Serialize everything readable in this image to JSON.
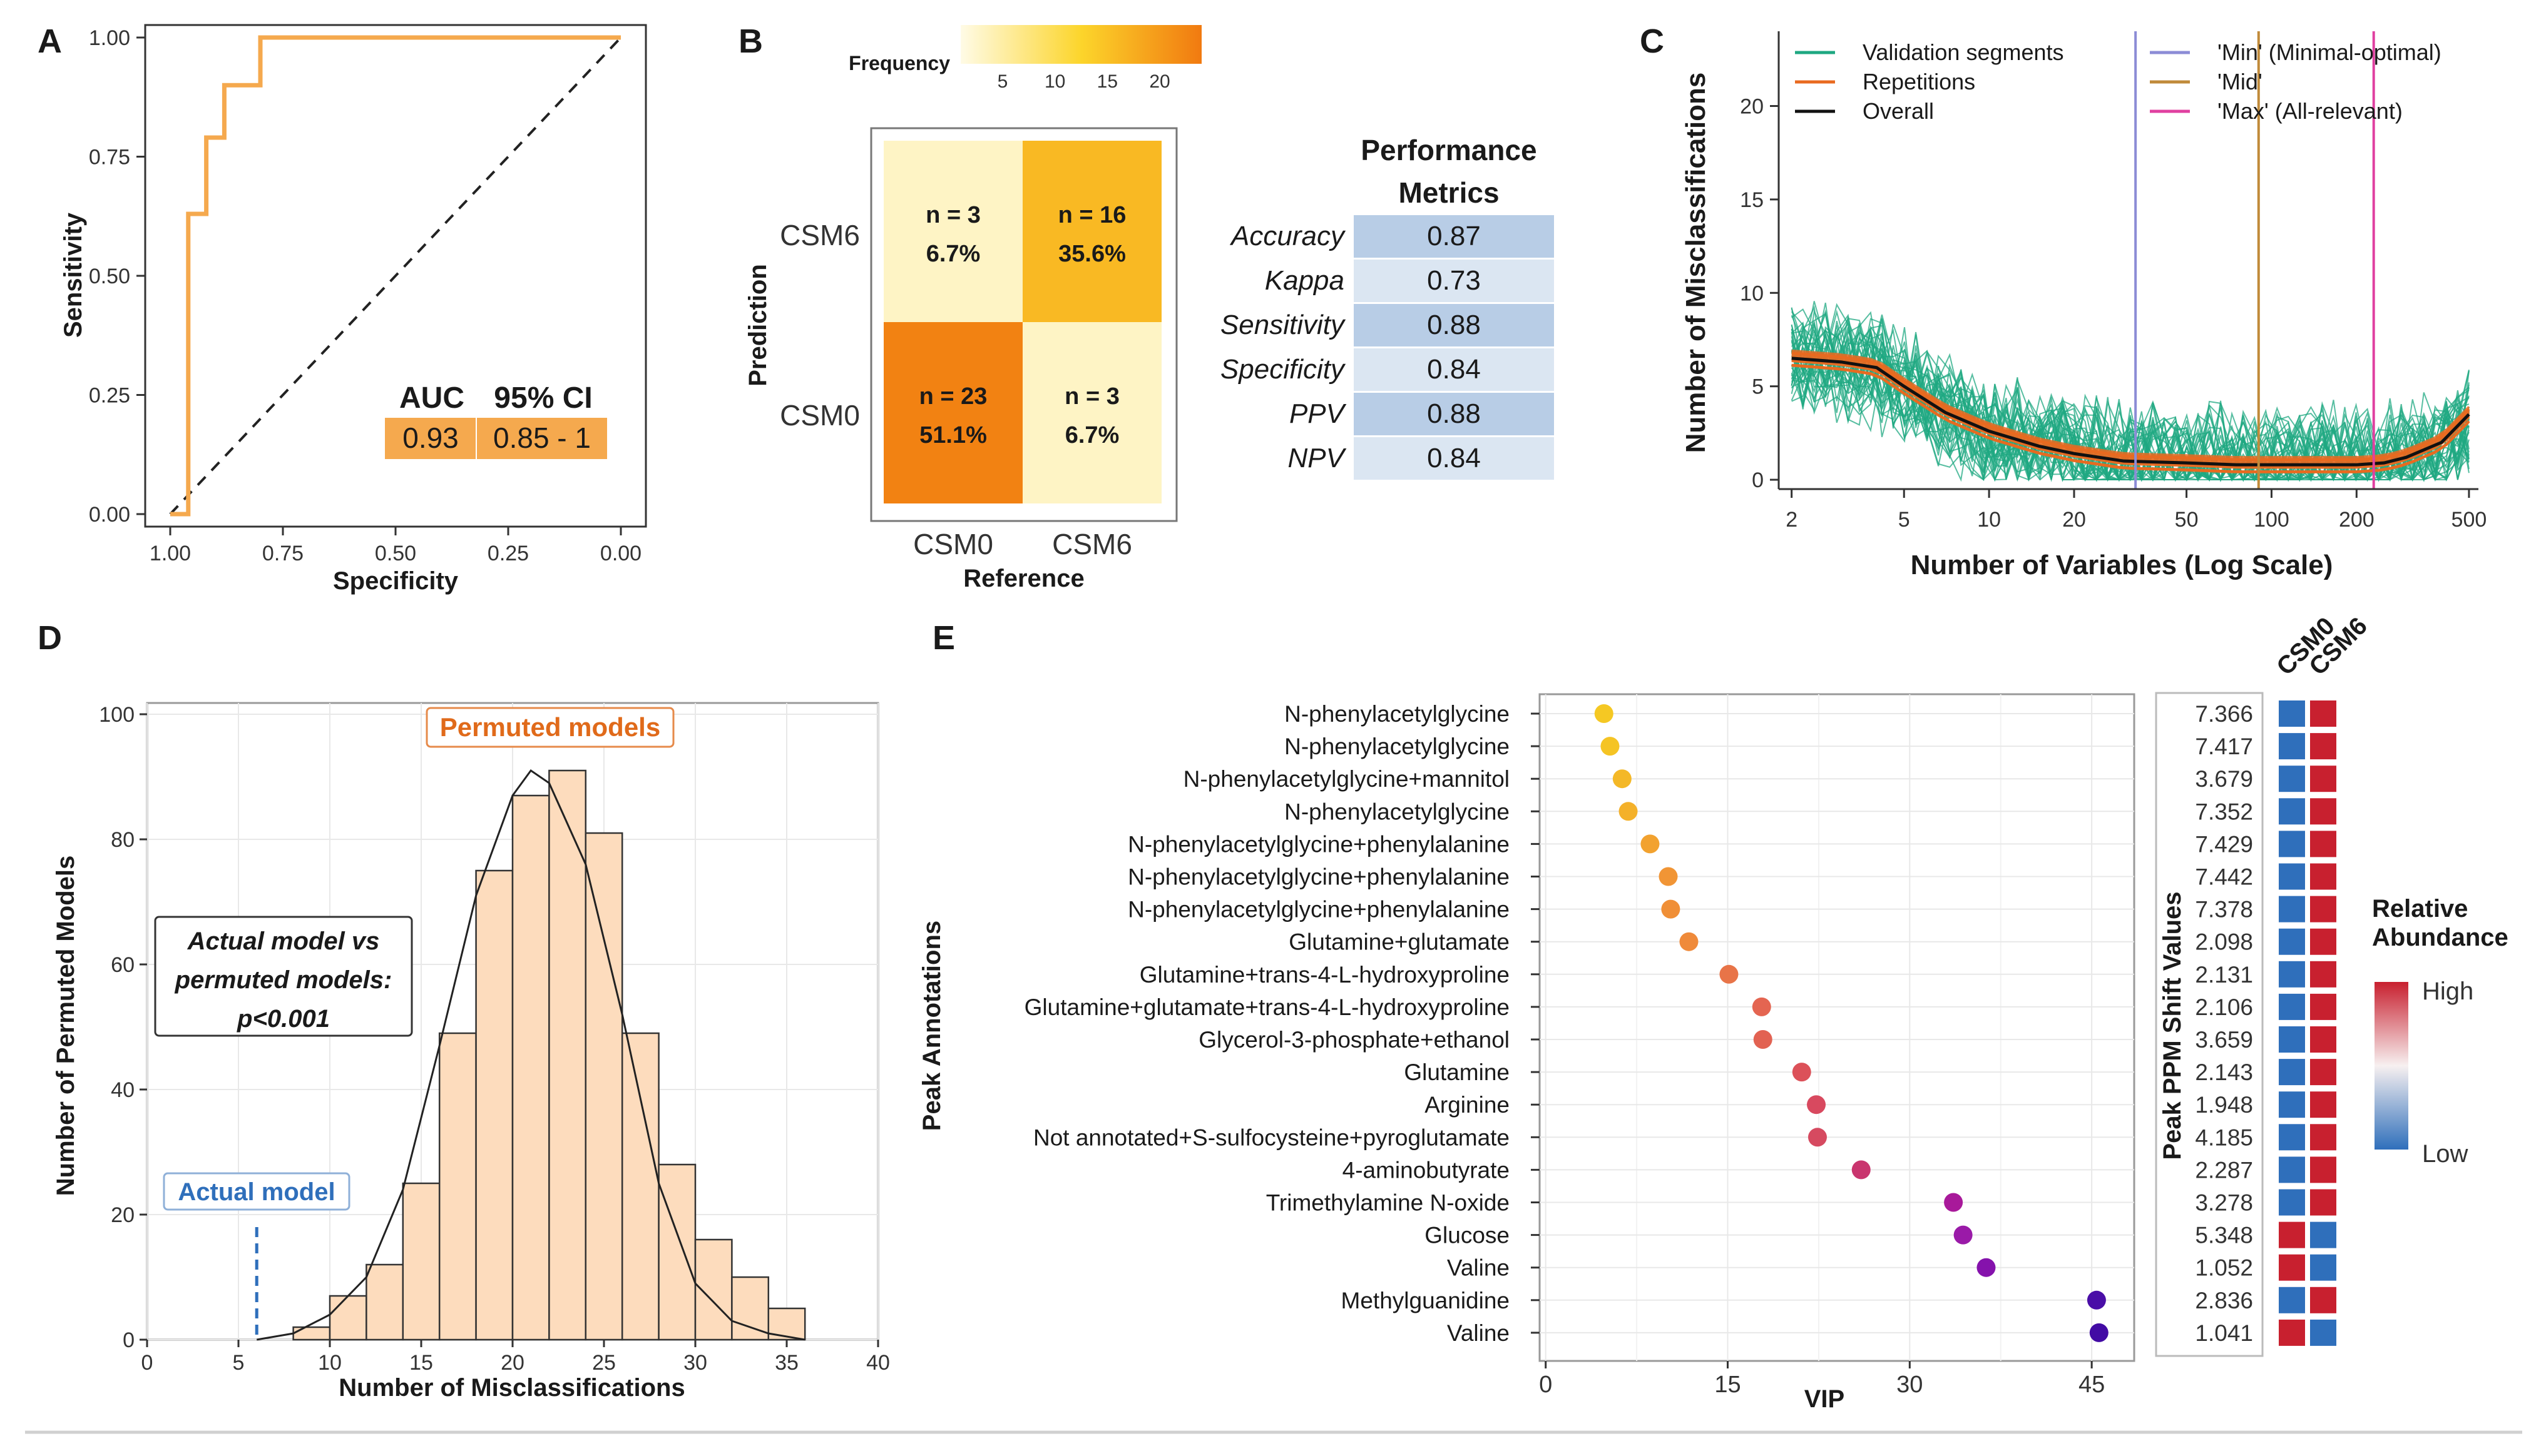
{
  "figure": {
    "panel_labels": [
      "A",
      "B",
      "C",
      "D",
      "E"
    ]
  },
  "chart_data": [
    {
      "panel": "A",
      "type": "line",
      "title": "",
      "xlabel": "Specificity",
      "ylabel": "Sensitivity",
      "xlim": [
        1.0,
        0.0
      ],
      "ylim": [
        0.0,
        1.0
      ],
      "x_ticks": [
        "1.00",
        "0.75",
        "0.50",
        "0.25",
        "0.00"
      ],
      "y_ticks": [
        "0.00",
        "0.25",
        "0.50",
        "0.75",
        "1.00"
      ],
      "roc_points": [
        [
          1.0,
          0.0
        ],
        [
          0.96,
          0.0
        ],
        [
          0.96,
          0.63
        ],
        [
          0.92,
          0.63
        ],
        [
          0.92,
          0.79
        ],
        [
          0.88,
          0.79
        ],
        [
          0.88,
          0.9
        ],
        [
          0.8,
          0.9
        ],
        [
          0.8,
          1.0
        ],
        [
          0.0,
          1.0
        ]
      ],
      "color": "#f5a94e",
      "table": {
        "headers": [
          "AUC",
          "95% CI"
        ],
        "values": [
          "0.93",
          "0.85 - 1"
        ],
        "fill": "#f5a94e"
      }
    },
    {
      "panel": "B",
      "type": "heatmap",
      "xlabel": "Reference",
      "ylabel": "Prediction",
      "x_categories": [
        "CSM0",
        "CSM6"
      ],
      "y_categories": [
        "CSM6",
        "CSM0"
      ],
      "cells": [
        {
          "row": "CSM6",
          "col": "CSM0",
          "n": "n = 3",
          "pct": "6.7%",
          "value": 3
        },
        {
          "row": "CSM6",
          "col": "CSM6",
          "n": "n = 16",
          "pct": "35.6%",
          "value": 16
        },
        {
          "row": "CSM0",
          "col": "CSM0",
          "n": "n = 23",
          "pct": "51.1%",
          "value": 23
        },
        {
          "row": "CSM0",
          "col": "CSM6",
          "n": "n = 3",
          "pct": "6.7%",
          "value": 3
        }
      ],
      "legend": {
        "title": "Frequency",
        "ticks": [
          "5",
          "10",
          "15",
          "20"
        ],
        "range": [
          1,
          24
        ]
      },
      "metrics": {
        "title_line1": "Performance",
        "title_line2": "Metrics",
        "rows": [
          {
            "name": "Accuracy",
            "value": "0.87"
          },
          {
            "name": "Kappa",
            "value": "0.73"
          },
          {
            "name": "Sensitivity",
            "value": "0.88"
          },
          {
            "name": "Specificity",
            "value": "0.84"
          },
          {
            "name": "PPV",
            "value": "0.88"
          },
          {
            "name": "NPV",
            "value": "0.84"
          }
        ]
      }
    },
    {
      "panel": "C",
      "type": "line",
      "xlabel": "Number of Variables (Log Scale)",
      "ylabel": "Number of Misclassifications",
      "x_scale": "log",
      "xlim": [
        1.8,
        540
      ],
      "ylim": [
        -0.5,
        24
      ],
      "x_ticks": [
        "2",
        "5",
        "10",
        "20",
        "50",
        "100",
        "200",
        "500"
      ],
      "y_ticks": [
        "0",
        "5",
        "10",
        "15",
        "20"
      ],
      "overall": {
        "x": [
          2,
          3,
          4,
          5,
          7,
          10,
          15,
          20,
          30,
          50,
          75,
          100,
          150,
          200,
          250,
          300,
          400,
          500
        ],
        "y": [
          6.5,
          6.3,
          6.0,
          5.0,
          3.6,
          2.6,
          1.8,
          1.4,
          1.0,
          0.9,
          0.8,
          0.8,
          0.8,
          0.8,
          0.9,
          1.2,
          2.0,
          3.5
        ]
      },
      "validation_band": {
        "upper": 3.0,
        "lower": 2.2
      },
      "vlines": [
        {
          "label": "'Min' (Minimal-optimal)",
          "x": 33,
          "color": "#8c8cd6"
        },
        {
          "label": "'Mid'",
          "x": 90,
          "color": "#c08a3a"
        },
        {
          "label": "'Max' (All-relevant)",
          "x": 230,
          "color": "#e040a0"
        }
      ],
      "legend": [
        {
          "label": "Validation segments",
          "color": "#1fa882"
        },
        {
          "label": "Repetitions",
          "color": "#e96a20"
        },
        {
          "label": "Overall",
          "color": "#111111"
        },
        {
          "label": "'Min' (Minimal-optimal)",
          "color": "#8c8cd6"
        },
        {
          "label": "'Mid'",
          "color": "#c08a3a"
        },
        {
          "label": "'Max' (All-relevant)",
          "color": "#e040a0"
        }
      ]
    },
    {
      "panel": "D",
      "type": "bar",
      "xlabel": "Number of Misclassifications",
      "ylabel": "Number of Permuted Models",
      "xlim": [
        0,
        40
      ],
      "ylim": [
        0,
        100
      ],
      "x_ticks": [
        "0",
        "5",
        "10",
        "15",
        "20",
        "25",
        "30",
        "35",
        "40"
      ],
      "y_ticks": [
        "0",
        "20",
        "40",
        "60",
        "80",
        "100"
      ],
      "bin_edges": [
        8,
        10,
        12,
        14,
        16,
        18,
        20,
        22,
        24,
        26,
        28,
        30,
        32,
        34,
        36
      ],
      "counts": [
        2,
        7,
        12,
        25,
        49,
        75,
        87,
        91,
        81,
        49,
        28,
        16,
        10,
        5
      ],
      "density_x": [
        6,
        8,
        10,
        12,
        14,
        16,
        18,
        20,
        21,
        22,
        24,
        26,
        28,
        30,
        32,
        34,
        36
      ],
      "density_y": [
        0,
        1,
        4,
        10,
        24,
        47,
        71,
        87,
        91,
        89,
        76,
        52,
        25,
        9,
        3,
        1,
        0
      ],
      "actual_model_x": 6,
      "actual_model_y_top": 18,
      "bar_fill": "#fddcbd",
      "labels": {
        "permuted": "Permuted models",
        "actual": "Actual model",
        "test_line1": "Actual model vs",
        "test_line2": "permuted models:",
        "test_line3": "p<0.001"
      }
    },
    {
      "panel": "E",
      "type": "scatter",
      "xlabel": "VIP",
      "ylabel": "Peak Annotations",
      "xlim": [
        -0.5,
        48.5
      ],
      "x_ticks": [
        "0",
        "15",
        "30",
        "45"
      ],
      "categories": [
        "N-phenylacetylglycine",
        "N-phenylacetylglycine",
        "N-phenylacetylglycine+mannitol",
        "N-phenylacetylglycine",
        "N-phenylacetylglycine+phenylalanine",
        "N-phenylacetylglycine+phenylalanine",
        "N-phenylacetylglycine+phenylalanine",
        "Glutamine+glutamate",
        "Glutamine+trans-4-L-hydroxyproline",
        "Glutamine+glutamate+trans-4-L-hydroxyproline",
        "Glycerol-3-phosphate+ethanol",
        "Glutamine",
        "Arginine",
        "Not annotated+S-sulfocysteine+pyroglutamate",
        "4-aminobutyrate",
        "Trimethylamine N-oxide",
        "Glucose",
        "Valine",
        "Methylguanidine",
        "Valine"
      ],
      "vip": [
        4.8,
        5.3,
        6.3,
        6.8,
        8.6,
        10.1,
        10.3,
        11.8,
        15.1,
        17.8,
        17.9,
        21.1,
        22.3,
        22.4,
        26.0,
        33.6,
        34.4,
        36.3,
        45.4,
        45.6
      ],
      "colors": [
        "#f5c823",
        "#f5c424",
        "#f4b827",
        "#f4b12a",
        "#f2a22f",
        "#f19535",
        "#f08f36",
        "#ef8a3a",
        "#e87448",
        "#e46551",
        "#e26252",
        "#dc5159",
        "#d8495f",
        "#d64a60",
        "#c9356e",
        "#a8199a",
        "#9a1aa8",
        "#8512ac",
        "#4a0ea7",
        "#420ba4"
      ],
      "ppm": {
        "title": "Peak PPM Shift Values",
        "values": [
          "7.366",
          "7.417",
          "3.679",
          "7.352",
          "7.429",
          "7.442",
          "7.378",
          "2.098",
          "2.131",
          "2.106",
          "3.659",
          "2.143",
          "1.948",
          "4.185",
          "2.287",
          "3.278",
          "5.348",
          "1.052",
          "2.836",
          "1.041"
        ],
        "columns": [
          "CSM0",
          "CSM6"
        ],
        "high_in": [
          "CSM6",
          "CSM6",
          "CSM6",
          "CSM6",
          "CSM6",
          "CSM6",
          "CSM6",
          "CSM6",
          "CSM6",
          "CSM6",
          "CSM6",
          "CSM6",
          "CSM6",
          "CSM6",
          "CSM6",
          "CSM6",
          "CSM0",
          "CSM0",
          "CSM6",
          "CSM0"
        ],
        "high_color": "#c8202f",
        "low_color": "#2f6fbb"
      },
      "legend": {
        "title_line1": "Relative",
        "title_line2": "Abundance",
        "high": "High",
        "low": "Low"
      }
    }
  ]
}
